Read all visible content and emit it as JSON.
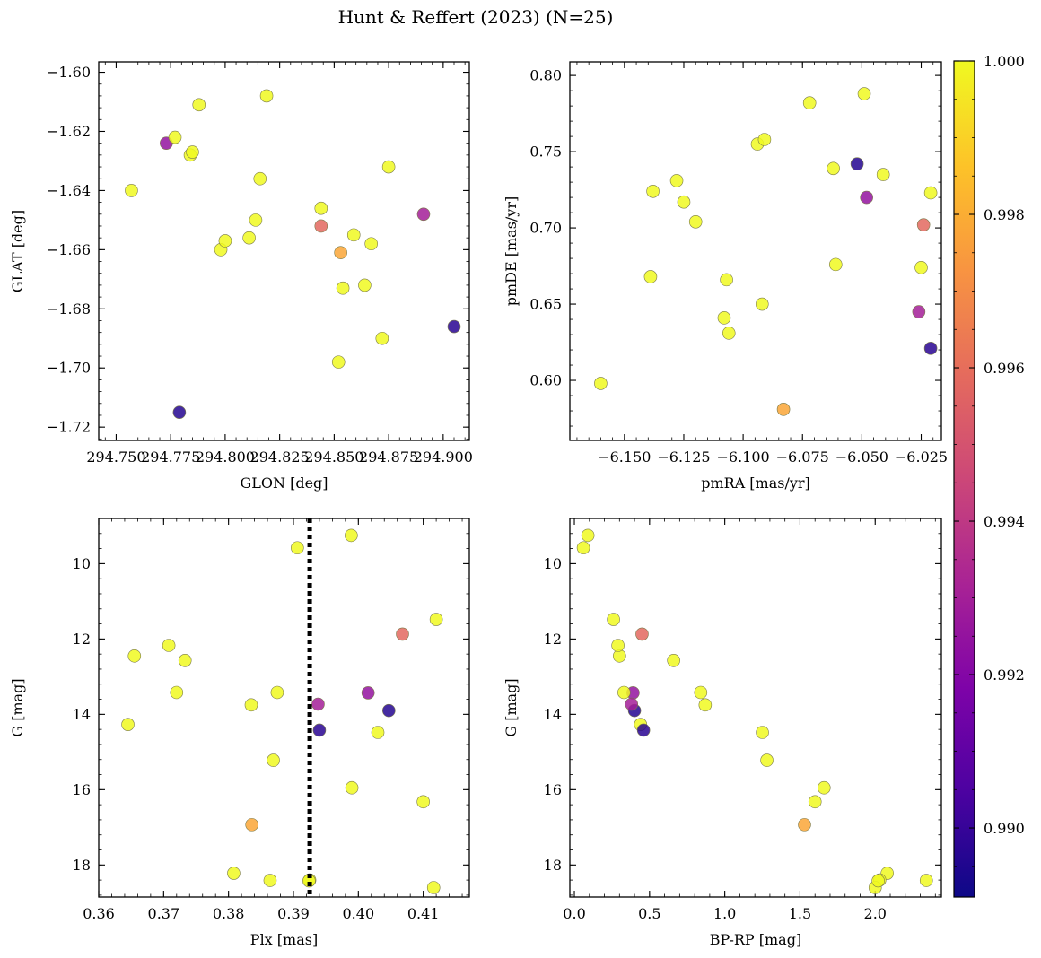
{
  "chart_data": {
    "title": "Hunt & Reffert (2023) (N=25)",
    "colorbar": {
      "cmap": "plasma",
      "min": 0.9891,
      "max": 1.0,
      "ticks": [
        0.99,
        0.992,
        0.994,
        0.996,
        0.998,
        1.0
      ],
      "tick_labels": [
        "0.990",
        "0.992",
        "0.994",
        "0.996",
        "0.998",
        "1.000"
      ]
    },
    "panels": [
      {
        "type": "scatter",
        "xlabel": "GLON [deg]",
        "ylabel": "GLAT [deg]",
        "xlim": [
          294.742,
          294.912
        ],
        "ylim": [
          -1.7245,
          -1.5965
        ],
        "xticks": [
          294.75,
          294.775,
          294.8,
          294.825,
          294.85,
          294.875,
          294.9
        ],
        "xtick_labels": [
          "294.750",
          "294.775",
          "294.800",
          "294.825",
          "294.850",
          "294.875",
          "294.900"
        ],
        "yticks": [
          -1.72,
          -1.7,
          -1.68,
          -1.66,
          -1.64,
          -1.62,
          -1.6
        ],
        "ytick_labels": [
          "−1.72",
          "−1.70",
          "−1.68",
          "−1.66",
          "−1.64",
          "−1.62",
          "−1.60"
        ],
        "invert_y": false
      },
      {
        "type": "scatter",
        "xlabel": "pmRA [mas/yr]",
        "ylabel": "pmDE [mas/yr]",
        "xlim": [
          -6.173,
          -6.0165
        ],
        "ylim": [
          0.5606,
          0.8089
        ],
        "xticks": [
          -6.15,
          -6.125,
          -6.1,
          -6.075,
          -6.05,
          -6.025
        ],
        "xtick_labels": [
          "−6.150",
          "−6.125",
          "−6.100",
          "−6.075",
          "−6.050",
          "−6.025"
        ],
        "yticks": [
          0.6,
          0.65,
          0.7,
          0.75,
          0.8
        ],
        "ytick_labels": [
          "0.60",
          "0.65",
          "0.70",
          "0.75",
          "0.80"
        ],
        "invert_y": false
      },
      {
        "type": "scatter",
        "xlabel": "Plx [mas]",
        "ylabel": "G [mag]",
        "xlim": [
          0.36,
          0.4171
        ],
        "ylim": [
          8.8,
          18.85
        ],
        "xticks": [
          0.36,
          0.37,
          0.38,
          0.39,
          0.4,
          0.41
        ],
        "xtick_labels": [
          "0.36",
          "0.37",
          "0.38",
          "0.39",
          "0.40",
          "0.41"
        ],
        "yticks": [
          10,
          12,
          14,
          16,
          18
        ],
        "ytick_labels": [
          "10",
          "12",
          "14",
          "16",
          "18"
        ],
        "invert_y": true,
        "vline": {
          "x": 0.3925,
          "style": "dotted"
        }
      },
      {
        "type": "scatter",
        "xlabel": "BP-RP [mag]",
        "ylabel": "G [mag]",
        "xlim": [
          -0.03,
          2.44
        ],
        "ylim": [
          8.8,
          18.85
        ],
        "xticks": [
          0.0,
          0.5,
          1.0,
          1.5,
          2.0
        ],
        "xtick_labels": [
          "0.0",
          "0.5",
          "1.0",
          "1.5",
          "2.0"
        ],
        "yticks": [
          10,
          12,
          14,
          16,
          18
        ],
        "ytick_labels": [
          "10",
          "12",
          "14",
          "16",
          "18"
        ],
        "invert_y": true
      }
    ],
    "stars": [
      {
        "glon": 294.757,
        "glat": -1.64,
        "pmra": -6.138,
        "pmde": 0.724,
        "plx": 0.3645,
        "g": 14.27,
        "bprp": 0.44,
        "prob": 1.0
      },
      {
        "glon": 294.773,
        "glat": -1.624,
        "pmra": -6.048,
        "pmde": 0.72,
        "plx": 0.4015,
        "g": 13.43,
        "bprp": 0.39,
        "prob": 0.9925
      },
      {
        "glon": 294.777,
        "glat": -1.622,
        "pmra": -6.072,
        "pmde": 0.782,
        "plx": 0.372,
        "g": 13.42,
        "bprp": 0.33,
        "prob": 1.0
      },
      {
        "glon": 294.779,
        "glat": -1.715,
        "pmra": -6.052,
        "pmde": 0.742,
        "plx": 0.4047,
        "g": 13.9,
        "bprp": 0.4,
        "prob": 0.9896
      },
      {
        "glon": 294.784,
        "glat": -1.628,
        "pmra": -6.108,
        "pmde": 0.641,
        "plx": 0.3733,
        "g": 12.57,
        "bprp": 0.66,
        "prob": 1.0
      },
      {
        "glon": 294.785,
        "glat": -1.627,
        "pmra": -6.125,
        "pmde": 0.717,
        "plx": 0.3835,
        "g": 13.75,
        "bprp": 0.87,
        "prob": 1.0
      },
      {
        "glon": 294.788,
        "glat": -1.611,
        "pmra": -6.049,
        "pmde": 0.788,
        "plx": 0.3906,
        "g": 9.58,
        "bprp": 0.06,
        "prob": 1.0
      },
      {
        "glon": 294.798,
        "glat": -1.66,
        "pmra": -6.16,
        "pmde": 0.598,
        "plx": 0.3989,
        "g": 9.25,
        "bprp": 0.09,
        "prob": 1.0
      },
      {
        "glon": 294.8,
        "glat": -1.657,
        "pmra": -6.12,
        "pmde": 0.704,
        "plx": 0.3655,
        "g": 12.45,
        "bprp": 0.3,
        "prob": 1.0
      },
      {
        "glon": 294.811,
        "glat": -1.656,
        "pmra": -6.139,
        "pmde": 0.668,
        "plx": 0.412,
        "g": 11.48,
        "bprp": 0.26,
        "prob": 1.0
      },
      {
        "glon": 294.814,
        "glat": -1.65,
        "pmra": -6.107,
        "pmde": 0.666,
        "plx": 0.3875,
        "g": 13.42,
        "bprp": 0.84,
        "prob": 1.0
      },
      {
        "glon": 294.816,
        "glat": -1.636,
        "pmra": -6.128,
        "pmde": 0.731,
        "plx": 0.3708,
        "g": 12.17,
        "bprp": 0.29,
        "prob": 1.0
      },
      {
        "glon": 294.819,
        "glat": -1.608,
        "pmra": -6.062,
        "pmde": 0.739,
        "plx": 0.399,
        "g": 15.95,
        "bprp": 1.66,
        "prob": 1.0
      },
      {
        "glon": 294.844,
        "glat": -1.646,
        "pmra": -6.094,
        "pmde": 0.755,
        "plx": 0.403,
        "g": 14.48,
        "bprp": 1.25,
        "prob": 1.0
      },
      {
        "glon": 294.844,
        "glat": -1.652,
        "pmra": -6.024,
        "pmde": 0.702,
        "plx": 0.4068,
        "g": 11.87,
        "bprp": 0.45,
        "prob": 0.9958
      },
      {
        "glon": 294.852,
        "glat": -1.698,
        "pmra": -6.091,
        "pmde": 0.758,
        "plx": 0.3869,
        "g": 15.22,
        "bprp": 1.28,
        "prob": 1.0
      },
      {
        "glon": 294.853,
        "glat": -1.661,
        "pmra": -6.083,
        "pmde": 0.581,
        "plx": 0.3836,
        "g": 16.93,
        "bprp": 1.53,
        "prob": 0.9978
      },
      {
        "glon": 294.854,
        "glat": -1.673,
        "pmra": -6.106,
        "pmde": 0.631,
        "plx": 0.41,
        "g": 16.32,
        "bprp": 1.6,
        "prob": 1.0
      },
      {
        "glon": 294.859,
        "glat": -1.655,
        "pmra": -6.092,
        "pmde": 0.65,
        "plx": 0.3808,
        "g": 18.22,
        "bprp": 2.08,
        "prob": 1.0
      },
      {
        "glon": 294.864,
        "glat": -1.672,
        "pmra": -6.041,
        "pmde": 0.735,
        "plx": 0.3864,
        "g": 18.41,
        "bprp": 2.34,
        "prob": 1.0
      },
      {
        "glon": 294.867,
        "glat": -1.658,
        "pmra": -6.061,
        "pmde": 0.676,
        "plx": 0.3925,
        "g": 18.4,
        "bprp": 2.03,
        "prob": 1.0
      },
      {
        "glon": 294.872,
        "glat": -1.69,
        "pmra": -6.025,
        "pmde": 0.674,
        "plx": 0.4116,
        "g": 18.6,
        "bprp": 2.0,
        "prob": 1.0
      },
      {
        "glon": 294.875,
        "glat": -1.632,
        "pmra": -6.021,
        "pmde": 0.723,
        "plx": 0.3924,
        "g": 18.42,
        "bprp": 2.02,
        "prob": 1.0
      },
      {
        "glon": 294.891,
        "glat": -1.648,
        "pmra": -6.026,
        "pmde": 0.645,
        "plx": 0.3938,
        "g": 13.73,
        "bprp": 0.38,
        "prob": 0.993
      },
      {
        "glon": 294.905,
        "glat": -1.686,
        "pmra": -6.021,
        "pmde": 0.621,
        "plx": 0.394,
        "g": 14.42,
        "bprp": 0.46,
        "prob": 0.9897
      }
    ]
  }
}
